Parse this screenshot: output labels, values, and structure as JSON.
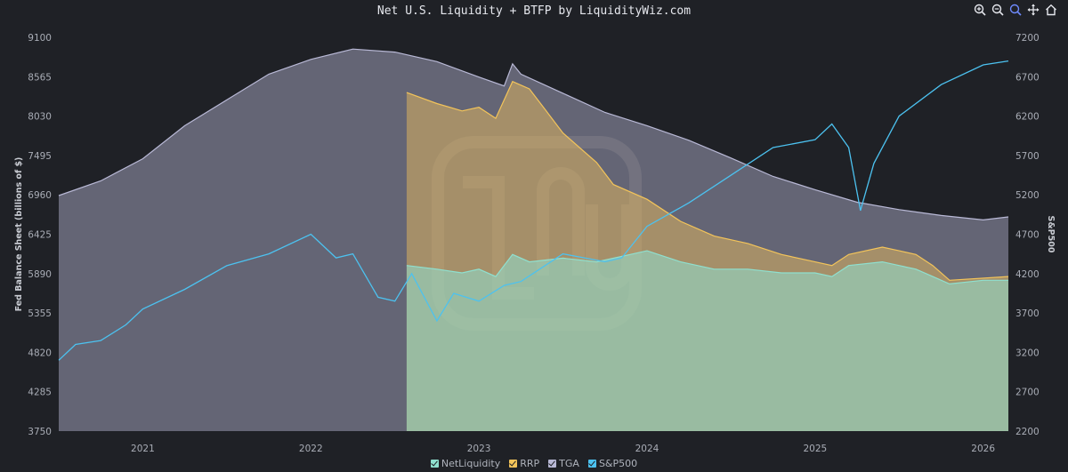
{
  "title": "Net U.S. Liquidity + BTFP by LiquidityWiz.com",
  "toolbar": [
    {
      "name": "zoom-in-icon"
    },
    {
      "name": "zoom-out-icon"
    },
    {
      "name": "search-zoom-icon"
    },
    {
      "name": "pan-icon"
    },
    {
      "name": "home-icon"
    }
  ],
  "colors": {
    "netliquidity": "#8fe0cf",
    "rrp": "#f3c45a",
    "tga": "#b9b9d6",
    "sp500": "#4cc2f0",
    "background": "#1f2126"
  },
  "legend": [
    {
      "label": "NetLiquidity",
      "color": "#8fe0cf"
    },
    {
      "label": "RRP",
      "color": "#f3c45a"
    },
    {
      "label": "TGA",
      "color": "#b9b9d6"
    },
    {
      "label": "S&P500",
      "color": "#4cc2f0"
    }
  ],
  "chart_data": {
    "type": "area",
    "title": "Net U.S. Liquidity + BTFP by LiquidityWiz.com",
    "ylabel": "Fed Balance Sheet (billions of $)",
    "y2label": "S&P500",
    "ylim": [
      3750,
      9100
    ],
    "y2lim": [
      2200,
      7200
    ],
    "xlim": [
      2020.5,
      2026.15
    ],
    "yticks": [
      "3750",
      "4285",
      "4820",
      "5355",
      "5890",
      "6425",
      "6960",
      "7495",
      "8030",
      "8565",
      "9100"
    ],
    "y2ticks": [
      "2200",
      "2700",
      "3200",
      "3700",
      "4200",
      "4700",
      "5200",
      "5700",
      "6200",
      "6700",
      "7200"
    ],
    "xticks": [
      "2021",
      "2022",
      "2023",
      "2024",
      "2025",
      "2026"
    ],
    "grid": false,
    "legend_position": "bottom",
    "series": [
      {
        "name": "TGA",
        "x": [
          2020.5,
          2020.75,
          2021.0,
          2021.25,
          2021.5,
          2021.75,
          2022.0,
          2022.25,
          2022.5,
          2022.75,
          2023.0,
          2023.15,
          2023.2,
          2023.25,
          2023.5,
          2023.75,
          2024.0,
          2024.25,
          2024.5,
          2024.75,
          2025.0,
          2025.25,
          2025.5,
          2025.75,
          2026.0,
          2026.15
        ],
        "values": [
          6950,
          7150,
          7450,
          7900,
          8250,
          8600,
          8800,
          8940,
          8900,
          8770,
          8560,
          8440,
          8740,
          8600,
          8340,
          8080,
          7900,
          7700,
          7460,
          7210,
          7030,
          6860,
          6760,
          6680,
          6620,
          6660
        ]
      },
      {
        "name": "RRP",
        "x": [
          2022.57,
          2022.75,
          2022.9,
          2023.0,
          2023.1,
          2023.2,
          2023.3,
          2023.4,
          2023.5,
          2023.7,
          2023.8,
          2024.0,
          2024.2,
          2024.4,
          2024.6,
          2024.8,
          2025.0,
          2025.1,
          2025.2,
          2025.4,
          2025.5,
          2025.6,
          2025.7,
          2025.8,
          2026.15
        ],
        "values": [
          8350,
          8200,
          8100,
          8150,
          8000,
          8500,
          8400,
          8100,
          7800,
          7400,
          7100,
          6900,
          6600,
          6400,
          6300,
          6150,
          6050,
          6000,
          6150,
          6250,
          6200,
          6150,
          6000,
          5800,
          5850
        ]
      },
      {
        "name": "NetLiquidity",
        "x": [
          2022.57,
          2022.75,
          2022.9,
          2023.0,
          2023.1,
          2023.2,
          2023.3,
          2023.5,
          2023.7,
          2023.9,
          2024.0,
          2024.2,
          2024.4,
          2024.6,
          2024.8,
          2025.0,
          2025.1,
          2025.2,
          2025.4,
          2025.5,
          2025.6,
          2025.7,
          2025.8,
          2026.0,
          2026.15
        ],
        "values": [
          6000,
          5950,
          5900,
          5950,
          5850,
          6150,
          6050,
          6100,
          6050,
          6150,
          6200,
          6050,
          5950,
          5950,
          5900,
          5900,
          5850,
          6000,
          6050,
          6000,
          5950,
          5850,
          5750,
          5800,
          5800
        ]
      },
      {
        "name": "S&P500",
        "axis": "right",
        "x": [
          2020.5,
          2020.6,
          2020.75,
          2020.9,
          2021.0,
          2021.25,
          2021.5,
          2021.75,
          2022.0,
          2022.15,
          2022.25,
          2022.4,
          2022.5,
          2022.6,
          2022.75,
          2022.85,
          2023.0,
          2023.15,
          2023.25,
          2023.5,
          2023.75,
          2023.85,
          2024.0,
          2024.25,
          2024.5,
          2024.75,
          2025.0,
          2025.1,
          2025.2,
          2025.27,
          2025.35,
          2025.5,
          2025.75,
          2026.0,
          2026.15
        ],
        "values": [
          3100,
          3300,
          3350,
          3550,
          3750,
          4000,
          4300,
          4450,
          4700,
          4400,
          4450,
          3900,
          3850,
          4200,
          3600,
          3950,
          3850,
          4050,
          4100,
          4450,
          4350,
          4400,
          4800,
          5100,
          5450,
          5800,
          5900,
          6100,
          5800,
          5000,
          5600,
          6200,
          6600,
          6850,
          6900
        ]
      }
    ]
  }
}
